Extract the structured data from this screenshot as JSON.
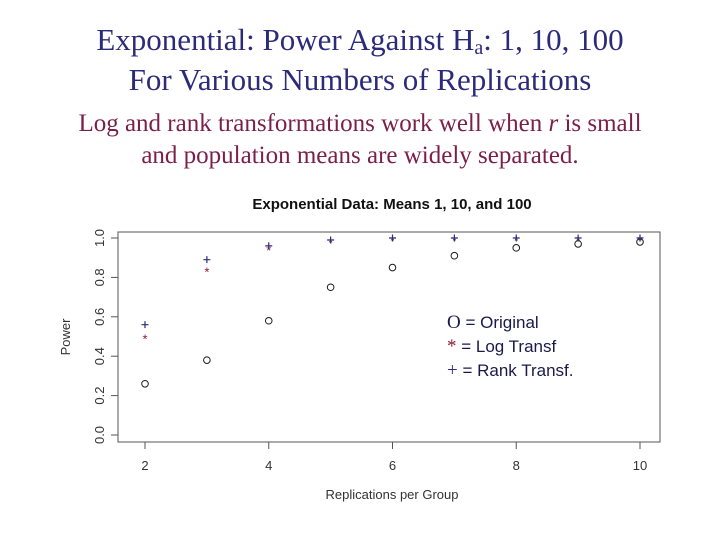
{
  "slide": {
    "title_part1": "Exponential: Power Against H",
    "title_sub": "a",
    "title_part2": ": 1, 10, 100",
    "title_line2": "For Various Numbers of Replications",
    "subtitle_part1": "Log and rank transformations work well when ",
    "subtitle_italic": "r",
    "subtitle_part2": " is small",
    "subtitle_line2": "and population means are widely separated."
  },
  "legend": [
    {
      "symbol": "O",
      "text": " = Original"
    },
    {
      "symbol": "*",
      "text": " = Log  Transf"
    },
    {
      "symbol": "+",
      "text": " = Rank Transf."
    }
  ],
  "colors": {
    "original": "#1a1a1a",
    "log": "#8b1a3a",
    "rank": "#2b2b7a",
    "axis": "#555555"
  },
  "chart_data": {
    "type": "scatter",
    "title": "Exponential Data: Means 1, 10, and 100",
    "xlabel": "Replications per Group",
    "ylabel": "Power",
    "xlim": [
      1.6,
      10.3
    ],
    "ylim": [
      0.0,
      1.02
    ],
    "xticks": [
      2,
      4,
      6,
      8,
      10
    ],
    "yticks": [
      0.0,
      0.2,
      0.4,
      0.6,
      0.8,
      1.0
    ],
    "xtick_labels": [
      "2",
      "4",
      "6",
      "8",
      "10"
    ],
    "ytick_labels": [
      "0.0",
      "0.2",
      "0.4",
      "0.6",
      "0.8",
      "1.0"
    ],
    "x": [
      2,
      3,
      4,
      5,
      6,
      7,
      8,
      9,
      10
    ],
    "series": [
      {
        "marker": "o",
        "values": [
          0.26,
          0.38,
          0.58,
          0.75,
          0.85,
          0.91,
          0.95,
          0.97,
          0.98
        ]
      },
      {
        "marker": "*",
        "values": [
          0.5,
          0.84,
          0.95,
          0.99,
          1.0,
          1.0,
          1.0,
          1.0,
          1.0
        ]
      },
      {
        "marker": "+",
        "values": [
          0.56,
          0.89,
          0.96,
          0.99,
          1.0,
          1.0,
          1.0,
          1.0,
          1.0
        ]
      }
    ]
  }
}
